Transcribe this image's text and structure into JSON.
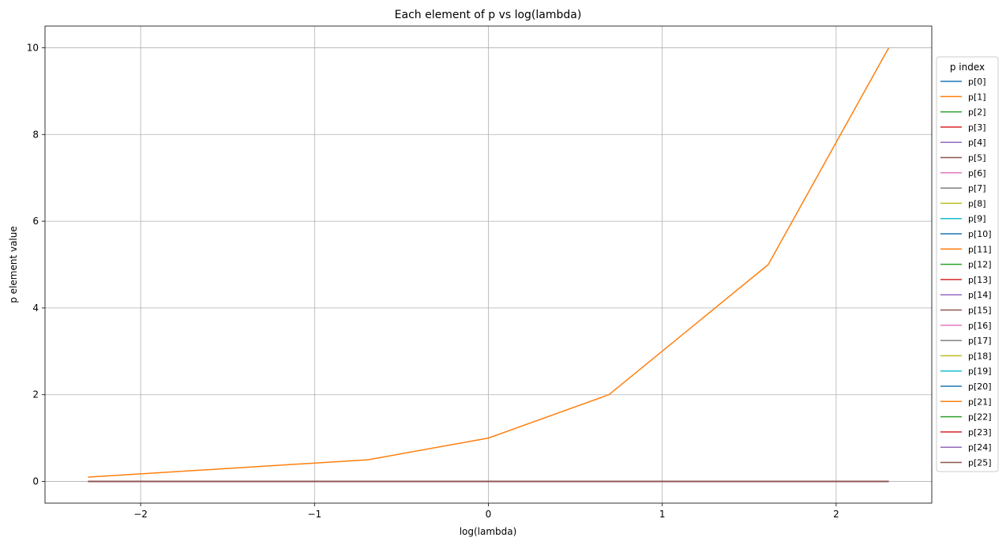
{
  "chart_data": {
    "type": "line",
    "title": "Each element of p vs log(lambda)",
    "xlabel": "log(lambda)",
    "ylabel": "p element value",
    "xlim": [
      -2.55,
      2.55
    ],
    "ylim": [
      -0.5,
      10.5
    ],
    "xticks": [
      -2,
      -1,
      0,
      1,
      2
    ],
    "xtick_labels": [
      "−2",
      "−1",
      "0",
      "1",
      "2"
    ],
    "yticks": [
      0,
      2,
      4,
      6,
      8,
      10
    ],
    "ytick_labels": [
      "0",
      "2",
      "4",
      "6",
      "8",
      "10"
    ],
    "grid": true,
    "legend": {
      "title": "p index",
      "placement": "outside-right"
    },
    "x": [
      -2.302585,
      -0.693147,
      0.0,
      0.693147,
      1.609438,
      2.302585
    ],
    "series": [
      {
        "name": "p[0]",
        "color": "#1f77b4",
        "values": [
          0,
          0,
          0,
          0,
          0,
          0
        ]
      },
      {
        "name": "p[1]",
        "color": "#ff7f0e",
        "values": [
          0.1,
          0.5,
          1,
          2,
          5,
          10
        ]
      },
      {
        "name": "p[2]",
        "color": "#2ca02c",
        "values": [
          0,
          0,
          0,
          0,
          0,
          0
        ]
      },
      {
        "name": "p[3]",
        "color": "#d62728",
        "values": [
          0,
          0,
          0,
          0,
          0,
          0
        ]
      },
      {
        "name": "p[4]",
        "color": "#9467bd",
        "values": [
          0,
          0,
          0,
          0,
          0,
          0
        ]
      },
      {
        "name": "p[5]",
        "color": "#8c564b",
        "values": [
          0,
          0,
          0,
          0,
          0,
          0
        ]
      },
      {
        "name": "p[6]",
        "color": "#e377c2",
        "values": [
          0,
          0,
          0,
          0,
          0,
          0
        ]
      },
      {
        "name": "p[7]",
        "color": "#7f7f7f",
        "values": [
          0,
          0,
          0,
          0,
          0,
          0
        ]
      },
      {
        "name": "p[8]",
        "color": "#bcbd22",
        "values": [
          0,
          0,
          0,
          0,
          0,
          0
        ]
      },
      {
        "name": "p[9]",
        "color": "#17becf",
        "values": [
          0,
          0,
          0,
          0,
          0,
          0
        ]
      },
      {
        "name": "p[10]",
        "color": "#1f77b4",
        "values": [
          0,
          0,
          0,
          0,
          0,
          0
        ]
      },
      {
        "name": "p[11]",
        "color": "#ff7f0e",
        "values": [
          0,
          0,
          0,
          0,
          0,
          0
        ]
      },
      {
        "name": "p[12]",
        "color": "#2ca02c",
        "values": [
          0,
          0,
          0,
          0,
          0,
          0
        ]
      },
      {
        "name": "p[13]",
        "color": "#d62728",
        "values": [
          0,
          0,
          0,
          0,
          0,
          0
        ]
      },
      {
        "name": "p[14]",
        "color": "#9467bd",
        "values": [
          0,
          0,
          0,
          0,
          0,
          0
        ]
      },
      {
        "name": "p[15]",
        "color": "#8c564b",
        "values": [
          0,
          0,
          0,
          0,
          0,
          0
        ]
      },
      {
        "name": "p[16]",
        "color": "#e377c2",
        "values": [
          0,
          0,
          0,
          0,
          0,
          0
        ]
      },
      {
        "name": "p[17]",
        "color": "#7f7f7f",
        "values": [
          0,
          0,
          0,
          0,
          0,
          0
        ]
      },
      {
        "name": "p[18]",
        "color": "#bcbd22",
        "values": [
          0,
          0,
          0,
          0,
          0,
          0
        ]
      },
      {
        "name": "p[19]",
        "color": "#17becf",
        "values": [
          0,
          0,
          0,
          0,
          0,
          0
        ]
      },
      {
        "name": "p[20]",
        "color": "#1f77b4",
        "values": [
          0,
          0,
          0,
          0,
          0,
          0
        ]
      },
      {
        "name": "p[21]",
        "color": "#ff7f0e",
        "values": [
          0,
          0,
          0,
          0,
          0,
          0
        ]
      },
      {
        "name": "p[22]",
        "color": "#2ca02c",
        "values": [
          0,
          0,
          0,
          0,
          0,
          0
        ]
      },
      {
        "name": "p[23]",
        "color": "#d62728",
        "values": [
          0,
          0,
          0,
          0,
          0,
          0
        ]
      },
      {
        "name": "p[24]",
        "color": "#9467bd",
        "values": [
          0,
          0,
          0,
          0,
          0,
          0
        ]
      },
      {
        "name": "p[25]",
        "color": "#8c564b",
        "values": [
          0,
          0,
          0,
          0,
          0,
          0
        ]
      }
    ]
  }
}
